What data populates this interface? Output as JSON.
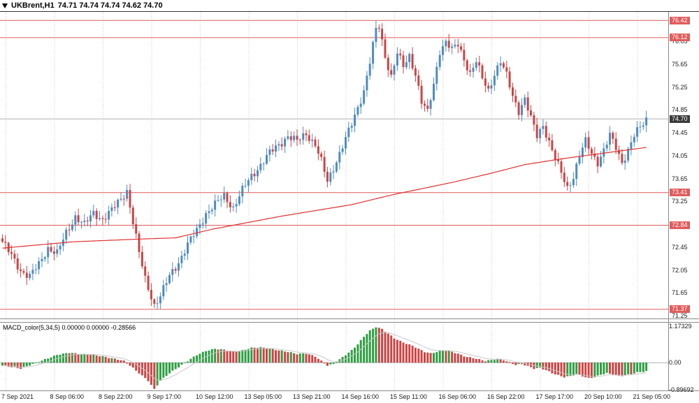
{
  "header": {
    "symbol": "UKBrent,H1",
    "ohlc": "74.71 74.74 74.74 74.62 74.70"
  },
  "chart_data": {
    "type": "candlestick",
    "symbol": "UKBrent",
    "timeframe": "H1",
    "bars_count": 213,
    "y_range": [
      71.21,
      76.57
    ],
    "y_ticks": [
      "76.05",
      "75.65",
      "75.25",
      "74.85",
      "74.45",
      "74.05",
      "73.65",
      "73.25",
      "72.85",
      "72.45",
      "72.05",
      "71.65",
      "71.25"
    ],
    "x_labels": [
      "7 Sep 2021",
      "8 Sep 06:00",
      "8 Sep 22:00",
      "9 Sep 17:00",
      "10 Sep 12:00",
      "13 Sep 05:00",
      "13 Sep 21:00",
      "14 Sep 16:00",
      "15 Sep 11:00",
      "16 Sep 06:00",
      "16 Sep 22:00",
      "17 Sep 17:00",
      "20 Sep 10:00",
      "21 Sep 05:00"
    ],
    "levels": [
      {
        "price": 76.42,
        "label": "76.42"
      },
      {
        "price": 76.12,
        "label": "76.12"
      },
      {
        "price": 73.41,
        "label": "73.41"
      },
      {
        "price": 72.84,
        "label": "72.84"
      },
      {
        "price": 71.37,
        "label": "71.37"
      }
    ],
    "bid": {
      "price": 74.7,
      "label": "74.70"
    },
    "price_keypoints": [
      [
        0,
        72.55
      ],
      [
        3,
        72.3
      ],
      [
        6,
        72.05
      ],
      [
        9,
        71.95
      ],
      [
        12,
        72.15
      ],
      [
        15,
        72.45
      ],
      [
        18,
        72.35
      ],
      [
        21,
        72.7
      ],
      [
        24,
        73.0
      ],
      [
        27,
        72.85
      ],
      [
        30,
        73.05
      ],
      [
        33,
        72.95
      ],
      [
        36,
        73.1
      ],
      [
        39,
        73.3
      ],
      [
        41,
        73.45
      ],
      [
        43,
        72.9
      ],
      [
        45,
        72.35
      ],
      [
        47,
        71.9
      ],
      [
        50,
        71.45
      ],
      [
        52,
        71.6
      ],
      [
        55,
        71.95
      ],
      [
        58,
        72.2
      ],
      [
        61,
        72.5
      ],
      [
        64,
        72.75
      ],
      [
        67,
        73.05
      ],
      [
        70,
        73.2
      ],
      [
        73,
        73.35
      ],
      [
        76,
        73.15
      ],
      [
        79,
        73.45
      ],
      [
        82,
        73.7
      ],
      [
        85,
        73.9
      ],
      [
        88,
        74.1
      ],
      [
        91,
        74.25
      ],
      [
        94,
        74.4
      ],
      [
        97,
        74.3
      ],
      [
        100,
        74.45
      ],
      [
        103,
        74.25
      ],
      [
        105,
        73.95
      ],
      [
        107,
        73.6
      ],
      [
        109,
        73.85
      ],
      [
        111,
        74.1
      ],
      [
        113,
        74.35
      ],
      [
        115,
        74.6
      ],
      [
        117,
        74.9
      ],
      [
        119,
        75.2
      ],
      [
        121,
        75.7
      ],
      [
        123,
        76.25
      ],
      [
        124,
        76.3
      ],
      [
        126,
        75.8
      ],
      [
        128,
        75.45
      ],
      [
        130,
        75.85
      ],
      [
        132,
        75.6
      ],
      [
        134,
        75.8
      ],
      [
        136,
        75.5
      ],
      [
        138,
        75.0
      ],
      [
        140,
        74.8
      ],
      [
        142,
        75.3
      ],
      [
        144,
        75.9
      ],
      [
        146,
        76.05
      ],
      [
        148,
        75.9
      ],
      [
        150,
        76.0
      ],
      [
        152,
        75.75
      ],
      [
        154,
        75.5
      ],
      [
        156,
        75.7
      ],
      [
        158,
        75.4
      ],
      [
        160,
        75.2
      ],
      [
        162,
        75.5
      ],
      [
        164,
        75.7
      ],
      [
        166,
        75.45
      ],
      [
        168,
        75.1
      ],
      [
        170,
        74.85
      ],
      [
        172,
        75.05
      ],
      [
        174,
        74.7
      ],
      [
        176,
        74.4
      ],
      [
        178,
        74.6
      ],
      [
        180,
        74.3
      ],
      [
        182,
        74.0
      ],
      [
        184,
        73.75
      ],
      [
        186,
        73.5
      ],
      [
        188,
        73.7
      ],
      [
        190,
        74.05
      ],
      [
        192,
        74.3
      ],
      [
        194,
        74.1
      ],
      [
        196,
        73.95
      ],
      [
        198,
        74.15
      ],
      [
        200,
        74.4
      ],
      [
        202,
        74.2
      ],
      [
        204,
        73.95
      ],
      [
        206,
        74.15
      ],
      [
        208,
        74.4
      ],
      [
        210,
        74.55
      ],
      [
        212,
        74.7
      ]
    ],
    "ma_keypoints": [
      [
        0,
        72.44
      ],
      [
        23,
        72.55
      ],
      [
        46,
        72.6
      ],
      [
        57,
        72.62
      ],
      [
        69,
        72.77
      ],
      [
        92,
        73.0
      ],
      [
        115,
        73.2
      ],
      [
        129,
        73.38
      ],
      [
        149,
        73.6
      ],
      [
        161,
        73.75
      ],
      [
        172,
        73.9
      ],
      [
        184,
        74.0
      ],
      [
        195,
        74.08
      ],
      [
        212,
        74.2
      ]
    ],
    "macd": {
      "label": "MACD_color(5,34,5)",
      "values_text": "0.00000 0.00000 -0.28566",
      "y_ticks": [
        "1.17329",
        "0.00",
        "-0.89692"
      ],
      "max": 1.17329,
      "min": -0.89692,
      "current": -0.28566,
      "keypoints": [
        [
          0,
          -0.1
        ],
        [
          6,
          -0.2
        ],
        [
          10,
          -0.05
        ],
        [
          14,
          0.1
        ],
        [
          18,
          0.25
        ],
        [
          22,
          0.32
        ],
        [
          26,
          0.28
        ],
        [
          30,
          0.25
        ],
        [
          34,
          0.18
        ],
        [
          38,
          0.1
        ],
        [
          40,
          0.05
        ],
        [
          42,
          -0.1
        ],
        [
          45,
          -0.35
        ],
        [
          48,
          -0.6
        ],
        [
          50,
          -0.88
        ],
        [
          52,
          -0.6
        ],
        [
          55,
          -0.35
        ],
        [
          58,
          -0.15
        ],
        [
          61,
          0.05
        ],
        [
          64,
          0.25
        ],
        [
          67,
          0.38
        ],
        [
          70,
          0.45
        ],
        [
          73,
          0.42
        ],
        [
          76,
          0.35
        ],
        [
          79,
          0.4
        ],
        [
          82,
          0.48
        ],
        [
          85,
          0.5
        ],
        [
          88,
          0.45
        ],
        [
          91,
          0.4
        ],
        [
          94,
          0.35
        ],
        [
          97,
          0.28
        ],
        [
          100,
          0.3
        ],
        [
          103,
          0.2
        ],
        [
          105,
          0.05
        ],
        [
          107,
          -0.1
        ],
        [
          109,
          -0.05
        ],
        [
          111,
          0.1
        ],
        [
          113,
          0.25
        ],
        [
          115,
          0.4
        ],
        [
          117,
          0.6
        ],
        [
          119,
          0.85
        ],
        [
          121,
          1.05
        ],
        [
          123,
          1.17
        ],
        [
          125,
          1.1
        ],
        [
          127,
          0.95
        ],
        [
          129,
          0.8
        ],
        [
          131,
          0.7
        ],
        [
          133,
          0.62
        ],
        [
          135,
          0.55
        ],
        [
          137,
          0.45
        ],
        [
          139,
          0.35
        ],
        [
          141,
          0.3
        ],
        [
          143,
          0.35
        ],
        [
          145,
          0.4
        ],
        [
          147,
          0.38
        ],
        [
          149,
          0.32
        ],
        [
          151,
          0.25
        ],
        [
          153,
          0.18
        ],
        [
          155,
          0.15
        ],
        [
          157,
          0.1
        ],
        [
          159,
          0.05
        ],
        [
          161,
          0.08
        ],
        [
          163,
          0.12
        ],
        [
          165,
          0.08
        ],
        [
          167,
          0.0
        ],
        [
          169,
          -0.08
        ],
        [
          171,
          -0.05
        ],
        [
          173,
          -0.12
        ],
        [
          175,
          -0.2
        ],
        [
          177,
          -0.18
        ],
        [
          179,
          -0.25
        ],
        [
          181,
          -0.35
        ],
        [
          183,
          -0.42
        ],
        [
          185,
          -0.48
        ],
        [
          187,
          -0.45
        ],
        [
          189,
          -0.38
        ],
        [
          191,
          -0.45
        ],
        [
          193,
          -0.52
        ],
        [
          195,
          -0.48
        ],
        [
          197,
          -0.4
        ],
        [
          199,
          -0.35
        ],
        [
          201,
          -0.4
        ],
        [
          203,
          -0.45
        ],
        [
          205,
          -0.42
        ],
        [
          207,
          -0.38
        ],
        [
          209,
          -0.33
        ],
        [
          211,
          -0.3
        ],
        [
          212,
          -0.286
        ]
      ]
    },
    "colors": {
      "up": "#4e8cc2",
      "down": "#cc4444",
      "ma": "#e03030",
      "level": "#e05c5c",
      "grid": "#c9c9c9",
      "bid_line": "#b0b0b0",
      "macd_up": "#2f9e44",
      "macd_down": "#cc4444",
      "signal": "#c8c8c8",
      "zero_line": "#b4b4b4",
      "frame": "#8a8a8a",
      "top_frame": "#333333",
      "bid_label_bg": "#3a3a3a"
    }
  }
}
